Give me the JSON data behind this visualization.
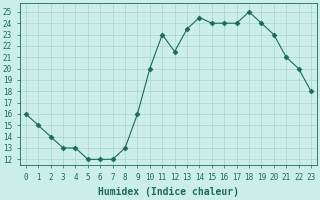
{
  "x": [
    0,
    1,
    2,
    3,
    4,
    5,
    6,
    7,
    8,
    9,
    10,
    11,
    12,
    13,
    14,
    15,
    16,
    17,
    18,
    19,
    20,
    21,
    22,
    23
  ],
  "y": [
    16,
    15,
    14,
    13,
    13,
    12,
    12,
    12,
    13,
    16,
    20,
    23,
    21.5,
    23.5,
    24.5,
    24,
    24,
    24,
    25,
    24,
    23,
    21,
    20,
    18
  ],
  "line_color": "#1a6b5a",
  "marker": "D",
  "marker_size": 2.5,
  "bg_color": "#cceee8",
  "grid_color": "#aad4cc",
  "xlabel": "Humidex (Indice chaleur)",
  "xlabel_fontsize": 7,
  "ylabel_ticks": [
    12,
    13,
    14,
    15,
    16,
    17,
    18,
    19,
    20,
    21,
    22,
    23,
    24,
    25
  ],
  "xlim": [
    -0.5,
    23.5
  ],
  "ylim": [
    11.5,
    25.8
  ],
  "xticks": [
    0,
    1,
    2,
    3,
    4,
    5,
    6,
    7,
    8,
    9,
    10,
    11,
    12,
    13,
    14,
    15,
    16,
    17,
    18,
    19,
    20,
    21,
    22,
    23
  ],
  "tick_fontsize": 5.5,
  "tick_color": "#1a6b5a"
}
